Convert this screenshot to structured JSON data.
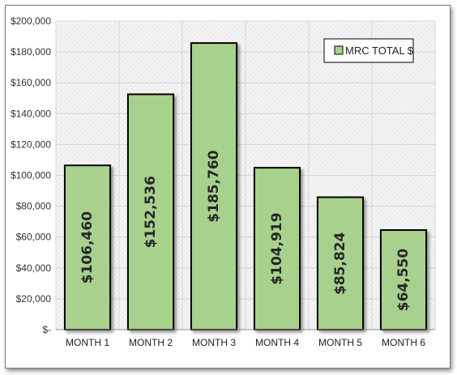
{
  "chart_data": {
    "type": "bar",
    "categories": [
      "MONTH 1",
      "MONTH 2",
      "MONTH 3",
      "MONTH 4",
      "MONTH 5",
      "MONTH 6"
    ],
    "series": [
      {
        "name": "MRC TOTAL $",
        "values": [
          106460,
          152536,
          185760,
          104919,
          85824,
          64550
        ],
        "labels": [
          "$106,460",
          "$152,536",
          "$185,760",
          "$104,919",
          "$85,824",
          "$64,550"
        ],
        "color": "#a9d18e"
      }
    ],
    "y_ticks": [
      {
        "value": 0,
        "label": "$-"
      },
      {
        "value": 20000,
        "label": "$20,000"
      },
      {
        "value": 40000,
        "label": "$40,000"
      },
      {
        "value": 60000,
        "label": "$60,000"
      },
      {
        "value": 80000,
        "label": "$80,000"
      },
      {
        "value": 100000,
        "label": "$100,000"
      },
      {
        "value": 120000,
        "label": "$120,000"
      },
      {
        "value": 140000,
        "label": "$140,000"
      },
      {
        "value": 160000,
        "label": "$160,000"
      },
      {
        "value": 180000,
        "label": "$180,000"
      },
      {
        "value": 200000,
        "label": "$200,000"
      }
    ],
    "ylim": [
      0,
      200000
    ],
    "title": "",
    "xlabel": "",
    "ylabel": "",
    "grid": true,
    "legend_position": "top-right",
    "colors": {
      "bar_fill": "#a9d18e",
      "bar_stroke": "#000000",
      "plot_background": "#f2f2f2",
      "grid": "#d6d6d6"
    }
  }
}
